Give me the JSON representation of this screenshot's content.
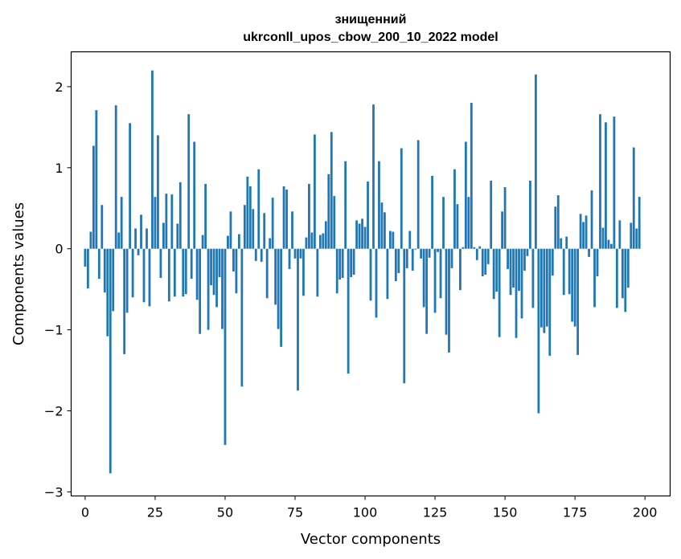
{
  "chart_data": {
    "type": "bar",
    "title": [
      "знищенний",
      "ukrconll_upos_cbow_200_10_2022 model"
    ],
    "xlabel": "Vector components",
    "ylabel": "Components values",
    "xlim": [
      -5,
      209
    ],
    "ylim": [
      -3.05,
      2.43
    ],
    "xticks": [
      0,
      25,
      50,
      75,
      100,
      125,
      150,
      175,
      200
    ],
    "xtick_labels": [
      "0",
      "25",
      "50",
      "75",
      "100",
      "125",
      "150",
      "175",
      "200"
    ],
    "yticks": [
      -3,
      -2,
      -1,
      0,
      1,
      2
    ],
    "ytick_labels": [
      "−3",
      "−2",
      "−1",
      "0",
      "1",
      "2"
    ],
    "bar_color": "#1f77b4",
    "grid": false,
    "values": [
      -0.22,
      -0.49,
      0.21,
      1.27,
      1.71,
      -0.37,
      0.54,
      -0.54,
      -1.08,
      -2.77,
      -0.77,
      1.77,
      0.2,
      0.64,
      -1.3,
      -0.79,
      1.55,
      -0.6,
      0.25,
      -0.08,
      0.42,
      -0.66,
      0.25,
      -0.71,
      2.2,
      0.64,
      1.4,
      -0.36,
      0.32,
      0.68,
      -0.65,
      0.67,
      -0.59,
      0.31,
      0.82,
      -0.59,
      -0.56,
      1.66,
      -0.37,
      1.32,
      -0.63,
      -1.05,
      0.17,
      0.8,
      -1.0,
      -0.45,
      -0.57,
      -0.72,
      -0.35,
      -0.99,
      -2.42,
      0.16,
      0.46,
      -0.28,
      -0.55,
      0.18,
      -1.7,
      0.54,
      0.89,
      0.77,
      0.49,
      -0.15,
      0.98,
      -0.16,
      0.44,
      -0.61,
      0.13,
      0.63,
      -0.69,
      -0.99,
      -1.21,
      0.77,
      0.73,
      -0.25,
      0.46,
      -0.12,
      -1.75,
      -0.12,
      -0.58,
      0.14,
      0.8,
      0.2,
      1.41,
      -0.59,
      0.17,
      0.19,
      0.34,
      0.92,
      1.44,
      0.65,
      -0.55,
      -0.38,
      -0.36,
      1.08,
      -1.54,
      -0.35,
      -0.32,
      0.35,
      0.31,
      0.37,
      0.27,
      0.83,
      -0.64,
      1.78,
      -0.85,
      1.08,
      0.57,
      0.45,
      -0.62,
      0.22,
      0.21,
      -0.4,
      -0.3,
      1.24,
      -1.66,
      -0.24,
      0.22,
      -0.27,
      -0.01,
      1.34,
      -0.12,
      -0.72,
      -1.05,
      -0.11,
      0.9,
      -0.79,
      -0.04,
      -0.61,
      0.64,
      -1.06,
      -1.28,
      -0.24,
      0.98,
      0.55,
      -0.51,
      0.02,
      1.32,
      0.64,
      1.8,
      0.02,
      -0.14,
      0.03,
      -0.34,
      -0.32,
      -0.19,
      0.84,
      -0.62,
      -0.53,
      -1.09,
      0.46,
      0.76,
      -0.25,
      -0.57,
      -0.48,
      -1.1,
      -0.52,
      -0.86,
      -0.27,
      -0.09,
      0.84,
      -0.73,
      2.15,
      -2.03,
      -0.97,
      -1.04,
      -0.96,
      -1.32,
      -0.33,
      0.52,
      0.66,
      0.13,
      -0.57,
      0.15,
      -0.56,
      -0.9,
      -0.96,
      -1.31,
      0.43,
      0.33,
      0.41,
      -0.1,
      0.72,
      -0.72,
      -0.34,
      1.66,
      0.26,
      1.56,
      0.11,
      0.06,
      1.63,
      -0.73,
      0.35,
      -0.61,
      -0.78,
      -0.48,
      0.32,
      1.25,
      0.25,
      0.64
    ]
  }
}
